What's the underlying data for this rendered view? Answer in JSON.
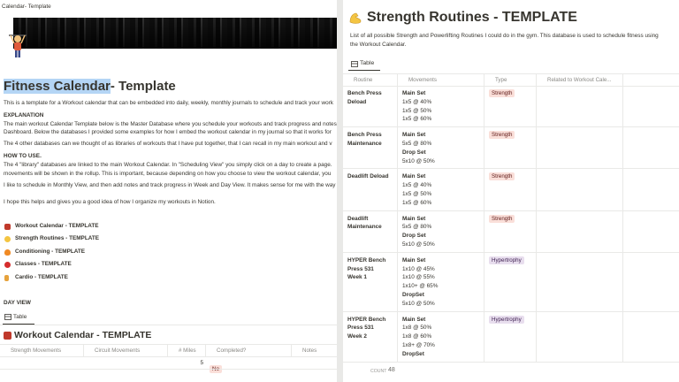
{
  "left": {
    "breadcrumb": "Calendar- Template",
    "title_selected": "Fitness Calendar",
    "title_rest": "- Template",
    "intro": "This is a template for a Workout calendar that can be embedded into daily, weekly, monthly journals to schedule and track your work",
    "explanation_heading": "EXPLANATION",
    "explanation_lines": [
      "The main workout Calendar Template below is the Master Database where you schedule your workouts and track progress and notes",
      "Dashboard. Below the databases I provided some examples for how I embed the workout calendar in my journal so that it works for"
    ],
    "libraries_line": "The 4 other databases can we thought of as libraries of workouts that I have put together, that I can recall in my main workout and v",
    "howto_heading": "HOW TO USE.",
    "howto_lines": [
      "The 4 \"library\" databases are linked to the main Workout Calendar. In \"Scheduling View\" you simply click on a day to create  a page.",
      "movements will be shown in the rollup. This is important, because depending on how you choose to view the workout calendar, you"
    ],
    "schedule_line": "I like to schedule in Monthly View, and then add notes and track progress in Week and Day View. It makes sense for me with the way",
    "hope_line": "I hope this helps and gives you a good idea of how I organize my workouts in Notion.",
    "links": [
      "Workout Calendar - TEMPLATE",
      "Strength Routines - TEMPLATE",
      "Conditioning - TEMPLATE",
      "Classes - TEMPLATE",
      "Cardio - TEMPLATE"
    ],
    "day_view": "DAY VIEW",
    "tab": "Table",
    "db_title": "Workout Calendar - TEMPLATE",
    "columns": [
      "Strength Movements",
      "Circuit Movements",
      "# Miles",
      "Completed?",
      "Notes"
    ],
    "row": {
      "miles": 5,
      "completed": "No"
    }
  },
  "right": {
    "title": "Strength Routines - TEMPLATE",
    "description": [
      "List of all possible Strength and Powerlifting Routines I could do in the gym. This database is used to schedule fitness using",
      "the Workout Calendar."
    ],
    "tab": "Table",
    "columns": [
      "Routine",
      "Movements",
      "Type",
      "Related to Workout Cale..."
    ],
    "rows": [
      {
        "routine": "Bench Press Deload",
        "movements": [
          "Main Set",
          "1x5 @ 40%",
          "1x5 @ 50%",
          "1x5 @ 60%"
        ],
        "type": "Strength"
      },
      {
        "routine": "Bench Press Maintenance",
        "movements": [
          "Main Set",
          "5x5 @ 80%",
          "Drop Set",
          "5x10 @ 50%"
        ],
        "type": "Strength"
      },
      {
        "routine": "Deadlift Deload",
        "movements": [
          "Main Set",
          "1x5 @ 40%",
          "1x5 @ 50%",
          "1x5 @ 60%"
        ],
        "type": "Strength"
      },
      {
        "routine": "Deadlift Maintenance",
        "movements": [
          "Main Set",
          "5x5 @ 80%",
          "Drop Set",
          "5x10 @ 50%"
        ],
        "type": "Strength"
      },
      {
        "routine": "HYPER Bench Press 531 Week 1",
        "movements": [
          "Main Set",
          "1x10 @ 45%",
          "1x10 @ 55%",
          "1x10+ @ 65%",
          "DropSet",
          "5x10 @ 50%"
        ],
        "type": "Hypertrophy"
      },
      {
        "routine": "HYPER Bench Press 531 Week 2",
        "movements": [
          "Main Set",
          "1x8 @ 50%",
          "1x8 @ 60%",
          "1x8+ @ 70%",
          "DropSet"
        ],
        "type": "Hypertrophy"
      }
    ],
    "count_label": "COUNT",
    "count": 48
  }
}
